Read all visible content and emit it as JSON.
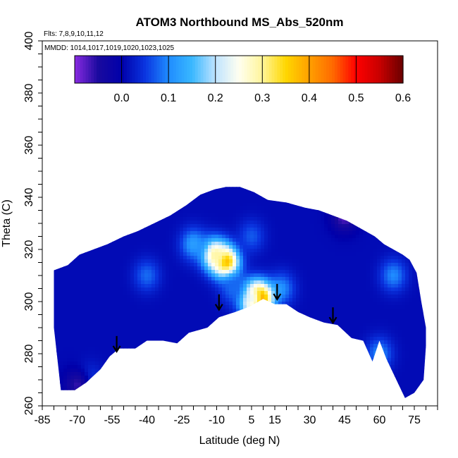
{
  "chart_data": {
    "type": "heatmap",
    "title": "ATOM3 Northbound MS_Abs_520nm",
    "flights_label": "Flts: 7,8,9,10,11,12",
    "dates_label": "MMDD: 1014,1017,1019,1020,1023,1025",
    "xlabel": "Latitude (deg N)",
    "ylabel": "Theta (C)",
    "xlim": [
      -85,
      85
    ],
    "ylim": [
      260,
      400
    ],
    "x_ticks": [
      -85,
      -70,
      -55,
      -40,
      -25,
      -10,
      5,
      15,
      30,
      45,
      60,
      75
    ],
    "x_tick_labels": [
      "-85",
      "-70",
      "-55",
      "-40",
      "-25",
      "-10",
      "5",
      "15",
      "30",
      "45",
      "60",
      "75"
    ],
    "y_ticks": [
      260,
      280,
      300,
      320,
      340,
      360,
      380,
      400
    ],
    "y_tick_labels": [
      "260",
      "280",
      "300",
      "320",
      "340",
      "360",
      "380",
      "400"
    ],
    "colorbar": {
      "range": [
        -0.1,
        0.6
      ],
      "ticks": [
        0.0,
        0.1,
        0.2,
        0.3,
        0.4,
        0.5,
        0.6
      ],
      "tick_labels": [
        "0.0",
        "0.1",
        "0.2",
        "0.3",
        "0.4",
        "0.5",
        "0.6"
      ],
      "colors": [
        "#8a2be2",
        "#1a0a9e",
        "#0000aa",
        "#0a35e0",
        "#1f8cff",
        "#39b8ff",
        "#bfe3ff",
        "#fffff0",
        "#fff59a",
        "#ffd700",
        "#ffa000",
        "#ff6a00",
        "#ff0000",
        "#c80000",
        "#6a0000"
      ]
    },
    "data_envelope": {
      "top": [
        [
          -80,
          312
        ],
        [
          -74,
          314
        ],
        [
          -69,
          318
        ],
        [
          -63,
          320
        ],
        [
          -57,
          322
        ],
        [
          -50,
          325
        ],
        [
          -44,
          327
        ],
        [
          -37,
          330
        ],
        [
          -30,
          333
        ],
        [
          -23,
          337
        ],
        [
          -17,
          341
        ],
        [
          -11,
          343
        ],
        [
          -6,
          344
        ],
        [
          0,
          344
        ],
        [
          6,
          342
        ],
        [
          12,
          339
        ],
        [
          20,
          338
        ],
        [
          28,
          336
        ],
        [
          34,
          335
        ],
        [
          40,
          333
        ],
        [
          46,
          331
        ],
        [
          52,
          328
        ],
        [
          58,
          325
        ],
        [
          62,
          322
        ],
        [
          66,
          320
        ],
        [
          70,
          318
        ],
        [
          73,
          316
        ],
        [
          76,
          311
        ],
        [
          78,
          300
        ],
        [
          80,
          290
        ],
        [
          80,
          283
        ]
      ],
      "bottom": [
        [
          80,
          283
        ],
        [
          79,
          270
        ],
        [
          75,
          265
        ],
        [
          71,
          263
        ],
        [
          63,
          278
        ],
        [
          60,
          285
        ],
        [
          57,
          277
        ],
        [
          53,
          285
        ],
        [
          48,
          286
        ],
        [
          42,
          291
        ],
        [
          36,
          292
        ],
        [
          30,
          294
        ],
        [
          25,
          296
        ],
        [
          20,
          299
        ],
        [
          15,
          299
        ],
        [
          10,
          301
        ],
        [
          4,
          298
        ],
        [
          -2,
          296
        ],
        [
          -9,
          294
        ],
        [
          -14,
          290
        ],
        [
          -22,
          288
        ],
        [
          -27,
          284
        ],
        [
          -33,
          285
        ],
        [
          -40,
          285
        ],
        [
          -45,
          282
        ],
        [
          -52,
          282
        ],
        [
          -56,
          279
        ],
        [
          -60,
          274
        ],
        [
          -66,
          269
        ],
        [
          -71,
          266
        ],
        [
          -77,
          266
        ],
        [
          -80,
          290
        ],
        [
          -80,
          312
        ]
      ]
    },
    "features": [
      {
        "lat": -6,
        "theta": 315,
        "value": 0.42
      },
      {
        "lat": -11,
        "theta": 318,
        "value": 0.3
      },
      {
        "lat": -20,
        "theta": 322,
        "value": 0.12
      },
      {
        "lat": -40,
        "theta": 310,
        "value": 0.08
      },
      {
        "lat": 18,
        "theta": 305,
        "value": 0.1
      },
      {
        "lat": 8,
        "theta": 301,
        "value": 0.55
      },
      {
        "lat": 5,
        "theta": 301,
        "value": 0.25
      },
      {
        "lat": -3,
        "theta": 305,
        "value": 0.08
      },
      {
        "lat": 5,
        "theta": 325,
        "value": 0.07
      },
      {
        "lat": 60,
        "theta": 280,
        "value": 0.1
      },
      {
        "lat": 66,
        "theta": 310,
        "value": 0.1
      },
      {
        "lat": -65,
        "theta": 270,
        "value": 0.06
      },
      {
        "lat": -70,
        "theta": 268,
        "value": -0.06
      },
      {
        "lat": 45,
        "theta": 333,
        "value": -0.08
      }
    ],
    "markers": [
      {
        "lat": -53,
        "theta": 283
      },
      {
        "lat": -9,
        "theta": 299
      },
      {
        "lat": 16,
        "theta": 303
      },
      {
        "lat": 40,
        "theta": 294
      }
    ]
  }
}
